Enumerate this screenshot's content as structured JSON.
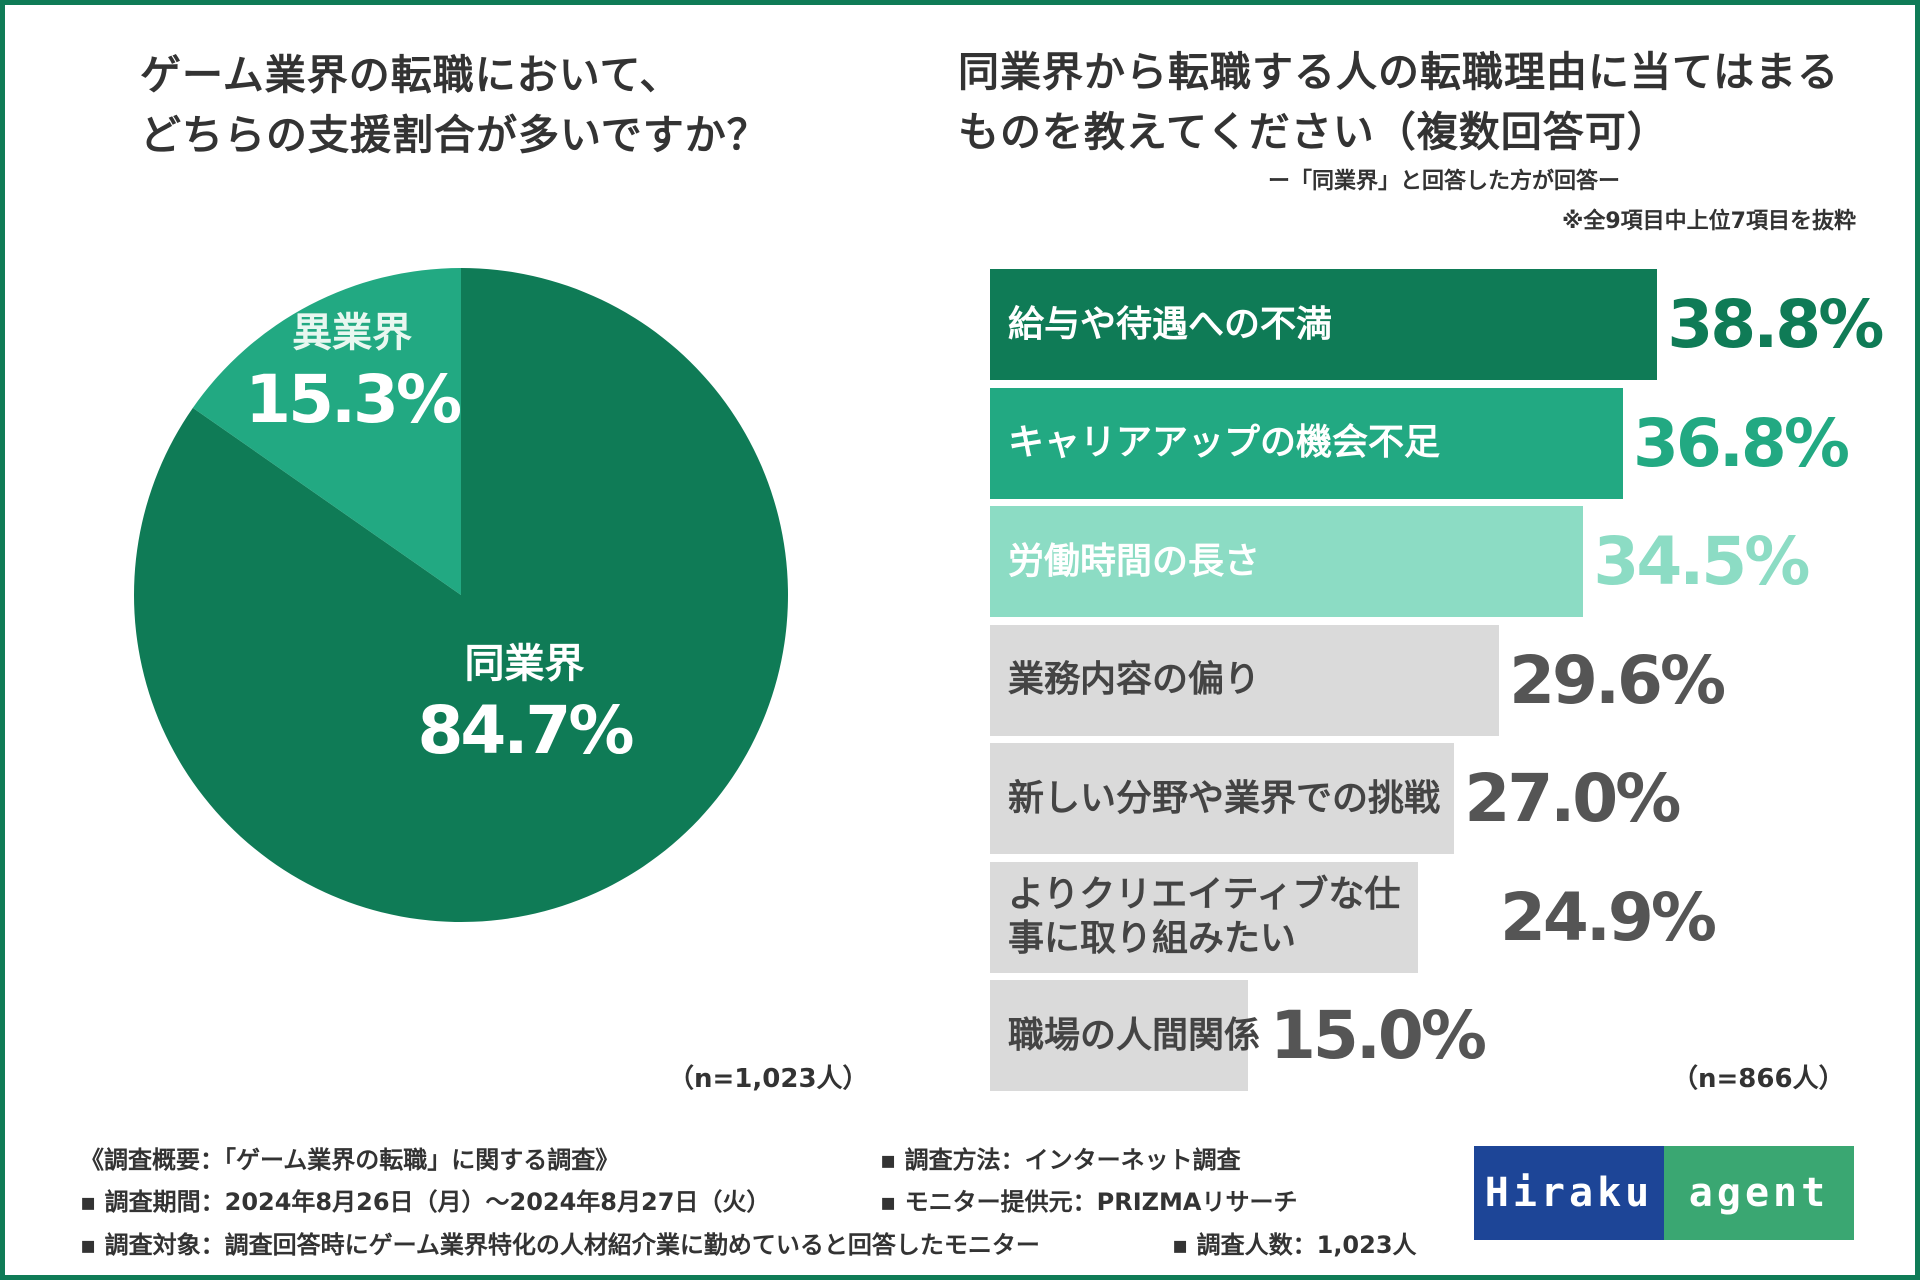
{
  "left_chart": {
    "title": "ゲーム業界の転職において、\nどちらの支援割合が多いですか？",
    "n_label": "（n=1,023人）"
  },
  "right_chart": {
    "title": "同業界から転職する人の転職理由に当てはまる\nものを教えてください（複数回答可）",
    "subtitle": "ー「同業界」と回答した方が回答ー",
    "footnote": "※全9項目中上位7項目を抜粋",
    "n_label": "（n=866人）"
  },
  "chart_data": [
    {
      "type": "pie",
      "title": "ゲーム業界の転職において、どちらの支援割合が多いですか？",
      "slices": [
        {
          "label": "同業界",
          "value": 84.7,
          "value_label": "84.7%",
          "color": "#0f7b56"
        },
        {
          "label": "異業界",
          "value": 15.3,
          "value_label": "15.3%",
          "color": "#22a982"
        }
      ]
    },
    {
      "type": "bar",
      "orientation": "horizontal",
      "title": "同業界から転職する人の転職理由に当てはまるものを教えてください（複数回答可）",
      "bars": [
        {
          "label": "給与や待遇への不満",
          "value": 38.8,
          "value_label": "38.8%",
          "bar_color": "#0f7b56",
          "label_color": "#ffffff",
          "value_color": "#0f7b56"
        },
        {
          "label": "キャリアアップの機会不足",
          "value": 36.8,
          "value_label": "36.8%",
          "bar_color": "#22a982",
          "label_color": "#ffffff",
          "value_color": "#22a982"
        },
        {
          "label": "労働時間の長さ",
          "value": 34.5,
          "value_label": "34.5%",
          "bar_color": "#8cdcc4",
          "label_color": "#ffffff",
          "value_color": "#8cdcc4"
        },
        {
          "label": "業務内容の偏り",
          "value": 29.6,
          "value_label": "29.6%",
          "bar_color": "#dadada",
          "label_color": "#444444",
          "value_color": "#555555"
        },
        {
          "label": "新しい分野や業界での挑戦",
          "value": 27.0,
          "value_label": "27.0%",
          "bar_color": "#dadada",
          "label_color": "#444444",
          "value_color": "#555555"
        },
        {
          "label": "よりクリエイティブな仕事に取り組みたい",
          "value": 24.9,
          "value_label": "24.9%",
          "bar_color": "#dadada",
          "label_color": "#444444",
          "value_color": "#555555"
        },
        {
          "label": "職場の人間関係",
          "value": 15.0,
          "value_label": "15.0%",
          "bar_color": "#dadada",
          "label_color": "#444444",
          "value_color": "#555555"
        }
      ]
    }
  ],
  "survey": {
    "summary": "《調査概要：「ゲーム業界の転職」に関する調査》",
    "period": "▪ 調査期間：2024年8月26日（月）〜2024年8月27日（火）",
    "target": "▪ 調査対象：調査回答時にゲーム業界特化の人材紹介業に勤めていると回答したモニター",
    "method": "▪ 調査方法：インターネット調査",
    "provider": "▪ モニター提供元：PRIZMAリサーチ",
    "count": "▪ 調査人数：1,023人"
  },
  "logo": {
    "left": "Hiraku",
    "right": "agent"
  }
}
